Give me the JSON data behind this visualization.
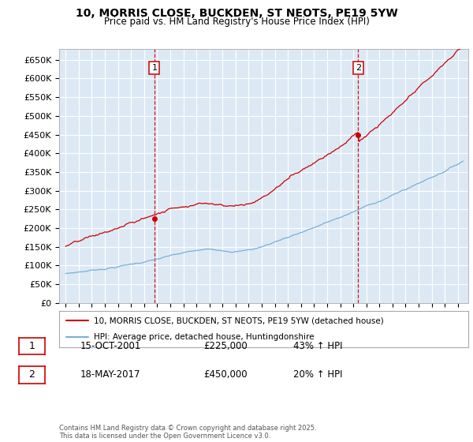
{
  "title_line1": "10, MORRIS CLOSE, BUCKDEN, ST NEOTS, PE19 5YW",
  "title_line2": "Price paid vs. HM Land Registry's House Price Index (HPI)",
  "plot_bg_color": "#dce9f5",
  "fig_bg_color": "#ffffff",
  "red_color": "#cc0000",
  "blue_color": "#7ab0d4",
  "grid_color": "#ffffff",
  "sale1_x": 2001.79,
  "sale1_y": 225000,
  "sale2_x": 2017.38,
  "sale2_y": 450000,
  "xmin": 1994.5,
  "xmax": 2025.8,
  "ymin": 0,
  "ymax": 680000,
  "yticks": [
    0,
    50000,
    100000,
    150000,
    200000,
    250000,
    300000,
    350000,
    400000,
    450000,
    500000,
    550000,
    600000,
    650000
  ],
  "ytick_labels": [
    "£0",
    "£50K",
    "£100K",
    "£150K",
    "£200K",
    "£250K",
    "£300K",
    "£350K",
    "£400K",
    "£450K",
    "£500K",
    "£550K",
    "£600K",
    "£650K"
  ],
  "legend_label1": "10, MORRIS CLOSE, BUCKDEN, ST NEOTS, PE19 5YW (detached house)",
  "legend_label2": "HPI: Average price, detached house, Huntingdonshire",
  "annotation1_label": "1",
  "annotation1_date": "15-OCT-2001",
  "annotation1_price": "£225,000",
  "annotation1_hpi": "43% ↑ HPI",
  "annotation2_label": "2",
  "annotation2_date": "18-MAY-2017",
  "annotation2_price": "£450,000",
  "annotation2_hpi": "20% ↑ HPI",
  "footnote": "Contains HM Land Registry data © Crown copyright and database right 2025.\nThis data is licensed under the Open Government Licence v3.0."
}
